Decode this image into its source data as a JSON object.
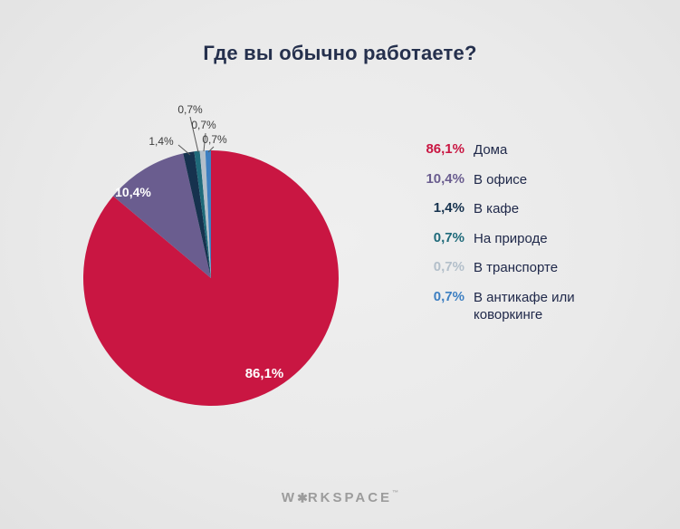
{
  "title": "Где вы обычно работаете?",
  "chart_data": {
    "type": "pie",
    "title": "Где вы обычно работаете?",
    "categories": [
      "Дома",
      "В офисе",
      "В кафе",
      "На природе",
      "В транспорте",
      "В антикафе или коворкинге"
    ],
    "values": [
      86.1,
      10.4,
      1.4,
      0.7,
      0.7,
      0.7
    ],
    "value_labels": [
      "86,1%",
      "10,4%",
      "1,4%",
      "0,7%",
      "0,7%",
      "0,7%"
    ],
    "colors": [
      "#c91642",
      "#6a5d8f",
      "#16324e",
      "#1f6a7a",
      "#b3bfca",
      "#3d7fc1"
    ],
    "start_angle_deg": -90,
    "direction": "clockwise",
    "legend_position": "right",
    "background_color": "#eaeaea",
    "leader_line_color": "#5a5a5a"
  },
  "footer": {
    "brand_pre": "W",
    "brand_icon": "✱",
    "brand_rest": "RKSPACE",
    "tm": "™"
  }
}
